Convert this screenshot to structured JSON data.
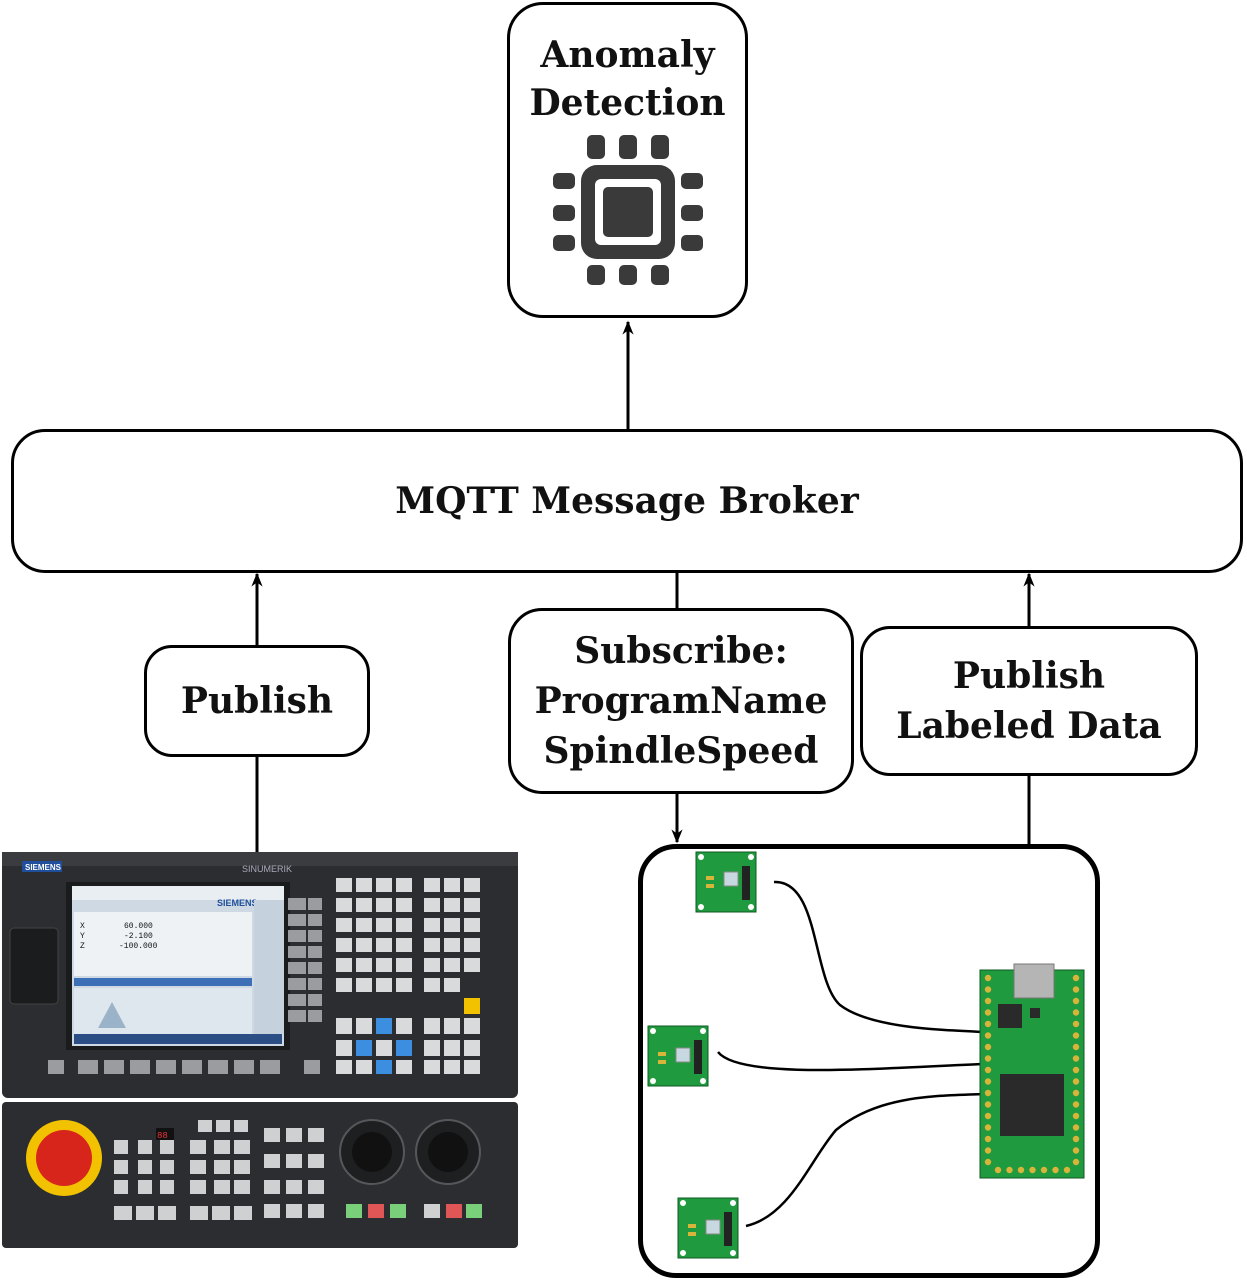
{
  "anomaly": {
    "line1": "Anomaly",
    "line2": "Detection",
    "icon": "chip-icon"
  },
  "broker": {
    "label": "MQTT Message Broker"
  },
  "publish_left": {
    "label": "Publish"
  },
  "subscribe": {
    "line1": "Subscribe:",
    "line2": "ProgramName",
    "line3": "SpindleSpeed"
  },
  "publish_right": {
    "line1": "Publish",
    "line2": "Labeled Data"
  },
  "cnc": {
    "brand": "SIEMENS",
    "model": "SINUMERIK",
    "screen_brand": "SIEMENS",
    "axes": [
      {
        "name": "X",
        "value": "60.000"
      },
      {
        "name": "Y",
        "value": "-2.100"
      },
      {
        "name": "Z",
        "value": "-100.000"
      }
    ]
  },
  "colors": {
    "pcb_green": "#1f9a3e",
    "pcb_dark": "#157a2e",
    "pad_gold": "#d9b43a",
    "cnc_body": "#2b2d30",
    "cnc_screen": "#a8c4dc",
    "estop_red": "#d8251c",
    "estop_yellow": "#f2c200"
  }
}
